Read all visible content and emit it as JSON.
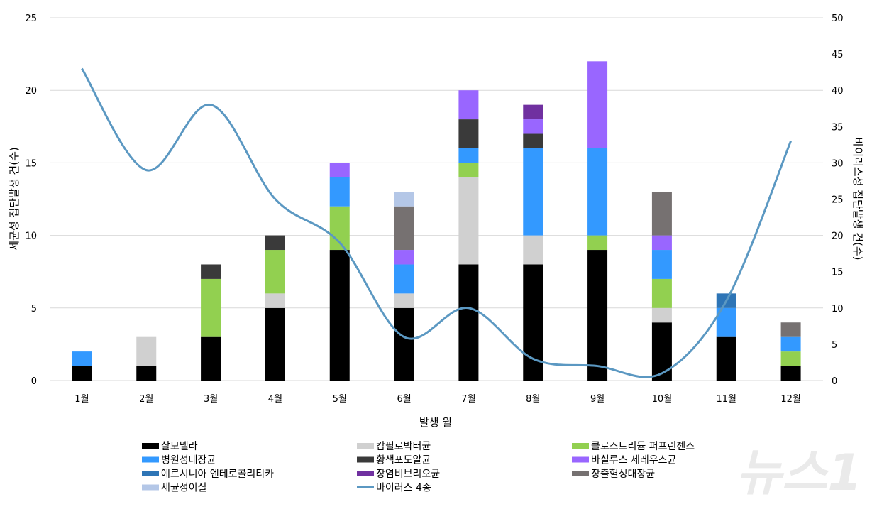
{
  "chart_data": {
    "type": "bar",
    "stacked": true,
    "categories": [
      "1월",
      "2월",
      "3월",
      "4월",
      "5월",
      "6월",
      "7월",
      "8월",
      "9월",
      "10월",
      "11월",
      "12월"
    ],
    "xlabel": "발생 월",
    "ylabel": "세균성 집단발생 건(수)",
    "y2label": "바이러스성 집단발생 건(수)",
    "ylim": [
      0,
      25
    ],
    "y2lim": [
      0,
      50
    ],
    "yticks": [
      "0",
      "5",
      "10",
      "15",
      "20",
      "25"
    ],
    "y2ticks": [
      "0",
      "5",
      "10",
      "15",
      "20",
      "25",
      "30",
      "35",
      "40",
      "45",
      "50"
    ],
    "grid": true,
    "legend_position": "bottom",
    "series": [
      {
        "name": "살모넬라",
        "color": "#000000",
        "values": [
          1,
          1,
          3,
          5,
          9,
          5,
          8,
          8,
          9,
          4,
          3,
          1
        ]
      },
      {
        "name": "캄필로박터균",
        "color": "#d0d0d0",
        "values": [
          0,
          2,
          0,
          1,
          0,
          1,
          6,
          2,
          0,
          1,
          0,
          0
        ]
      },
      {
        "name": "클로스트리듐 퍼프린젠스",
        "color": "#92d050",
        "values": [
          0,
          0,
          4,
          3,
          3,
          0,
          1,
          0,
          1,
          2,
          0,
          1
        ]
      },
      {
        "name": "병원성대장균",
        "color": "#3399ff",
        "values": [
          1,
          0,
          0,
          0,
          2,
          2,
          1,
          6,
          6,
          2,
          2,
          1
        ]
      },
      {
        "name": "황색포도알균",
        "color": "#3a3a3a",
        "values": [
          0,
          0,
          1,
          1,
          0,
          0,
          2,
          1,
          0,
          0,
          0,
          0
        ]
      },
      {
        "name": "바실루스 세레우스균",
        "color": "#9966ff",
        "values": [
          0,
          0,
          0,
          0,
          1,
          1,
          2,
          1,
          6,
          1,
          0,
          0
        ]
      },
      {
        "name": "예르시니아 엔테로콜리티카",
        "color": "#2e75b6",
        "values": [
          0,
          0,
          0,
          0,
          0,
          0,
          0,
          0,
          0,
          0,
          1,
          0
        ]
      },
      {
        "name": "장염비브리오균",
        "color": "#7030a0",
        "values": [
          0,
          0,
          0,
          0,
          0,
          0,
          0,
          1,
          0,
          0,
          0,
          0
        ]
      },
      {
        "name": "장출혈성대장균",
        "color": "#767171",
        "values": [
          0,
          0,
          0,
          0,
          0,
          3,
          0,
          0,
          0,
          3,
          0,
          1
        ]
      },
      {
        "name": "세균성이질",
        "color": "#b4c7e7",
        "values": [
          0,
          0,
          0,
          0,
          0,
          1,
          0,
          0,
          0,
          0,
          0,
          0
        ]
      }
    ],
    "line_series": {
      "name": "바이러스 4종",
      "color": "#5b98c2",
      "axis": "right",
      "smooth": true,
      "values": [
        43,
        29,
        38,
        25,
        19,
        6,
        10,
        3,
        2,
        1,
        11,
        33
      ]
    }
  },
  "watermark": "뉴스1"
}
